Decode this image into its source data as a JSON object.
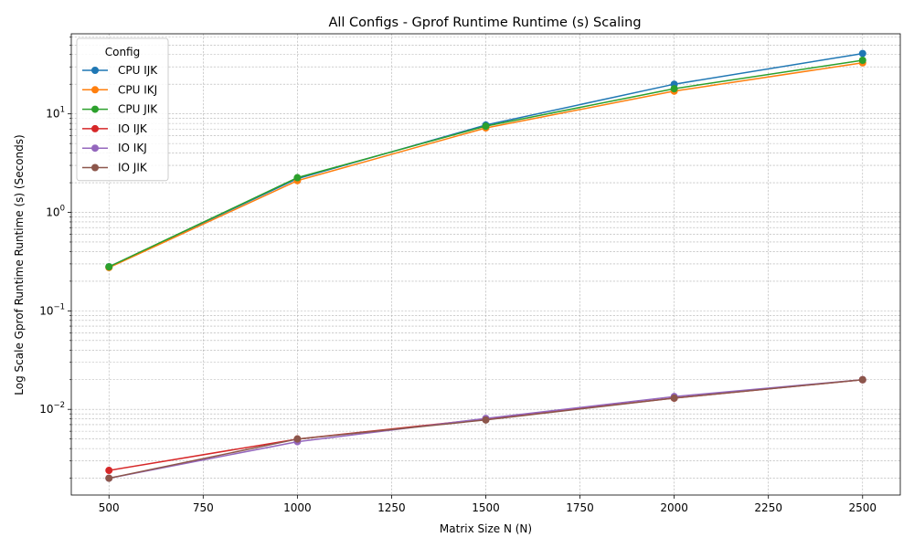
{
  "chart_data": {
    "type": "line",
    "title": "All Configs - Gprof Runtime Runtime (s) Scaling",
    "xlabel": "Matrix Size N (N)",
    "ylabel": "Log Scale Gprof Runtime Runtime (s) (Seconds)",
    "x": [
      500,
      1000,
      1500,
      2000,
      2500
    ],
    "x_ticks": [
      500,
      750,
      1000,
      1250,
      1500,
      1750,
      2000,
      2250,
      2500
    ],
    "xlim": [
      400,
      2600
    ],
    "y_scale": "log",
    "ylim": [
      0.00135,
      65
    ],
    "y_ticks": [
      {
        "value": 0.01,
        "base": "10",
        "exp": "−2"
      },
      {
        "value": 0.1,
        "base": "10",
        "exp": "−1"
      },
      {
        "value": 1,
        "base": "10",
        "exp": "0"
      },
      {
        "value": 10,
        "base": "10",
        "exp": "1"
      }
    ],
    "grid": true,
    "legend": {
      "title": "Config",
      "position": "top-left"
    },
    "series": [
      {
        "name": "CPU IJK",
        "color": "#1f77b4",
        "values": [
          0.28,
          2.2,
          7.7,
          20.0,
          41.0
        ]
      },
      {
        "name": "CPU IKJ",
        "color": "#ff7f0e",
        "values": [
          0.275,
          2.1,
          7.2,
          17.0,
          33.0
        ]
      },
      {
        "name": "CPU JIK",
        "color": "#2ca02c",
        "values": [
          0.28,
          2.25,
          7.5,
          18.0,
          35.0
        ]
      },
      {
        "name": "IO IJK",
        "color": "#d62728",
        "values": [
          0.0024,
          0.005,
          0.008,
          0.013,
          0.02
        ]
      },
      {
        "name": "IO IKJ",
        "color": "#9467bd",
        "values": [
          0.002,
          0.0047,
          0.0081,
          0.0135,
          0.02
        ]
      },
      {
        "name": "IO JIK",
        "color": "#8c564b",
        "values": [
          0.002,
          0.005,
          0.0078,
          0.013,
          0.02
        ]
      }
    ]
  }
}
